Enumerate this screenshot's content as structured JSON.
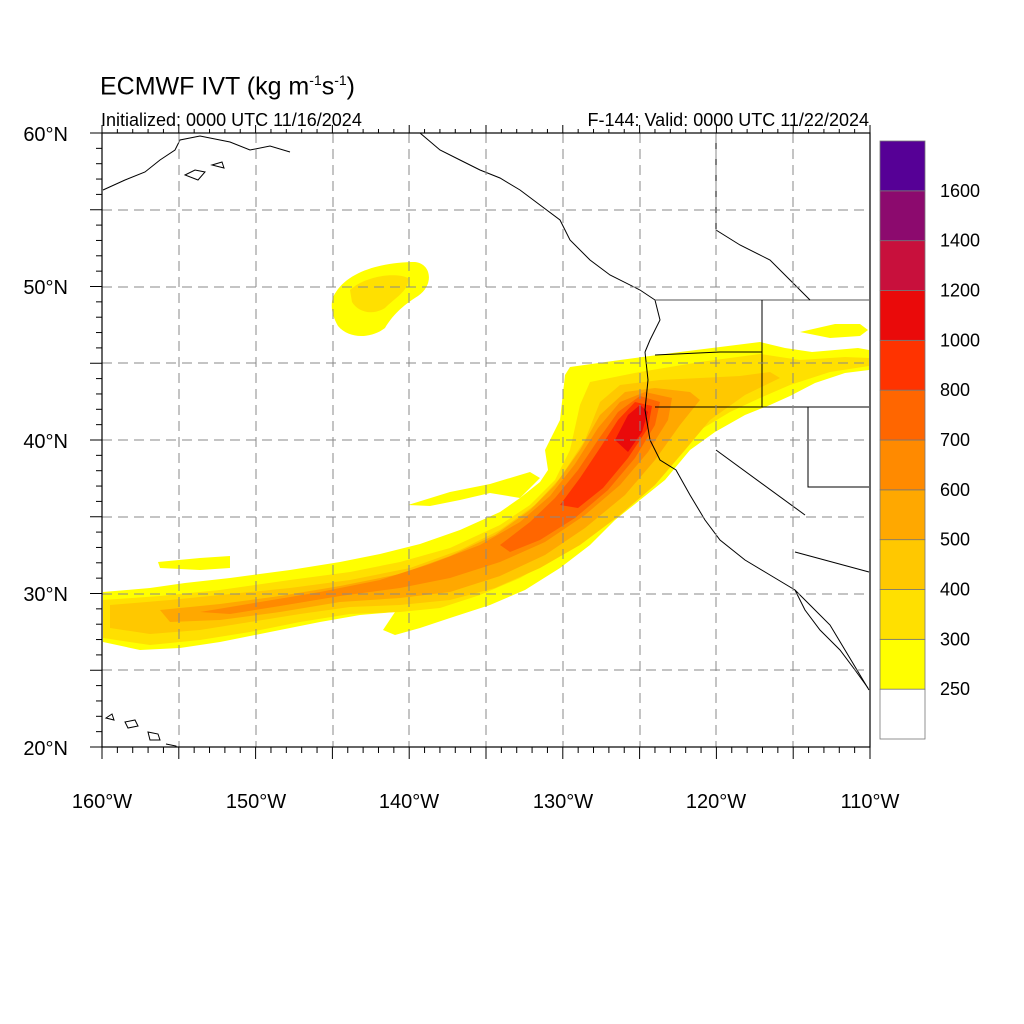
{
  "header": {
    "title_main": "ECMWF IVT (kg m",
    "title_exp1": "-1",
    "title_mid": "s",
    "title_exp2": "-1",
    "title_end": ")",
    "initialized": "Initialized: 0000 UTC 11/16/2024",
    "valid": "F-144: Valid: 0000 UTC 11/22/2024"
  },
  "map": {
    "lon_range": [
      -160,
      -110
    ],
    "lat_range": [
      20,
      60
    ],
    "grid_lines": true,
    "lon_labels": [
      "160°W",
      "150°W",
      "140°W",
      "130°W",
      "120°W",
      "110°W"
    ],
    "lat_labels": [
      "20°N",
      "30°N",
      "40°N",
      "50°N",
      "60°N"
    ]
  },
  "colorbar": {
    "levels": [
      250,
      300,
      400,
      500,
      600,
      700,
      800,
      1000,
      1200,
      1400,
      1600
    ],
    "labels": [
      "250",
      "300",
      "400",
      "500",
      "600",
      "700",
      "800",
      "1000",
      "1200",
      "1400",
      "1600"
    ],
    "colors": [
      "#ffffff",
      "#ffff00",
      "#ffe000",
      "#ffc800",
      "#ffa800",
      "#ff8a00",
      "#ff6600",
      "#ff3300",
      "#ea0a0a",
      "#c8103c",
      "#8c0a6e",
      "#560096"
    ]
  }
}
